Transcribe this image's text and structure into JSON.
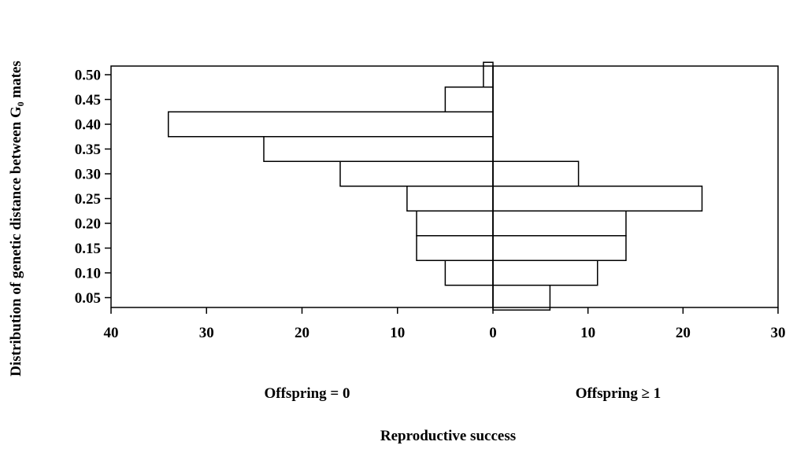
{
  "chart_data": {
    "type": "bar",
    "orientation": "horizontal",
    "layout": "back-to-back",
    "ylabel": "Distribution of genetic distance between G₀ mates",
    "xlabel": "Reproductive success",
    "categories": [
      "0.05",
      "0.10",
      "0.15",
      "0.20",
      "0.25",
      "0.30",
      "0.35",
      "0.40",
      "0.45",
      "0.50"
    ],
    "left_panel": {
      "label": "Offspring = 0",
      "xlim": [
        40,
        0
      ],
      "ticks": [
        "40",
        "30",
        "20",
        "10",
        "0"
      ],
      "values": [
        0,
        5,
        8,
        8,
        9,
        16,
        24,
        34,
        5,
        1
      ]
    },
    "right_panel": {
      "label": "Offspring ≥ 1",
      "xlim": [
        0,
        30
      ],
      "ticks": [
        "0",
        "10",
        "20",
        "30"
      ],
      "values": [
        6,
        11,
        14,
        14,
        22,
        9,
        0,
        0,
        0,
        0
      ]
    },
    "grid": false,
    "colors": {
      "bar_fill": "#ffffff",
      "bar_stroke": "#000000"
    }
  }
}
